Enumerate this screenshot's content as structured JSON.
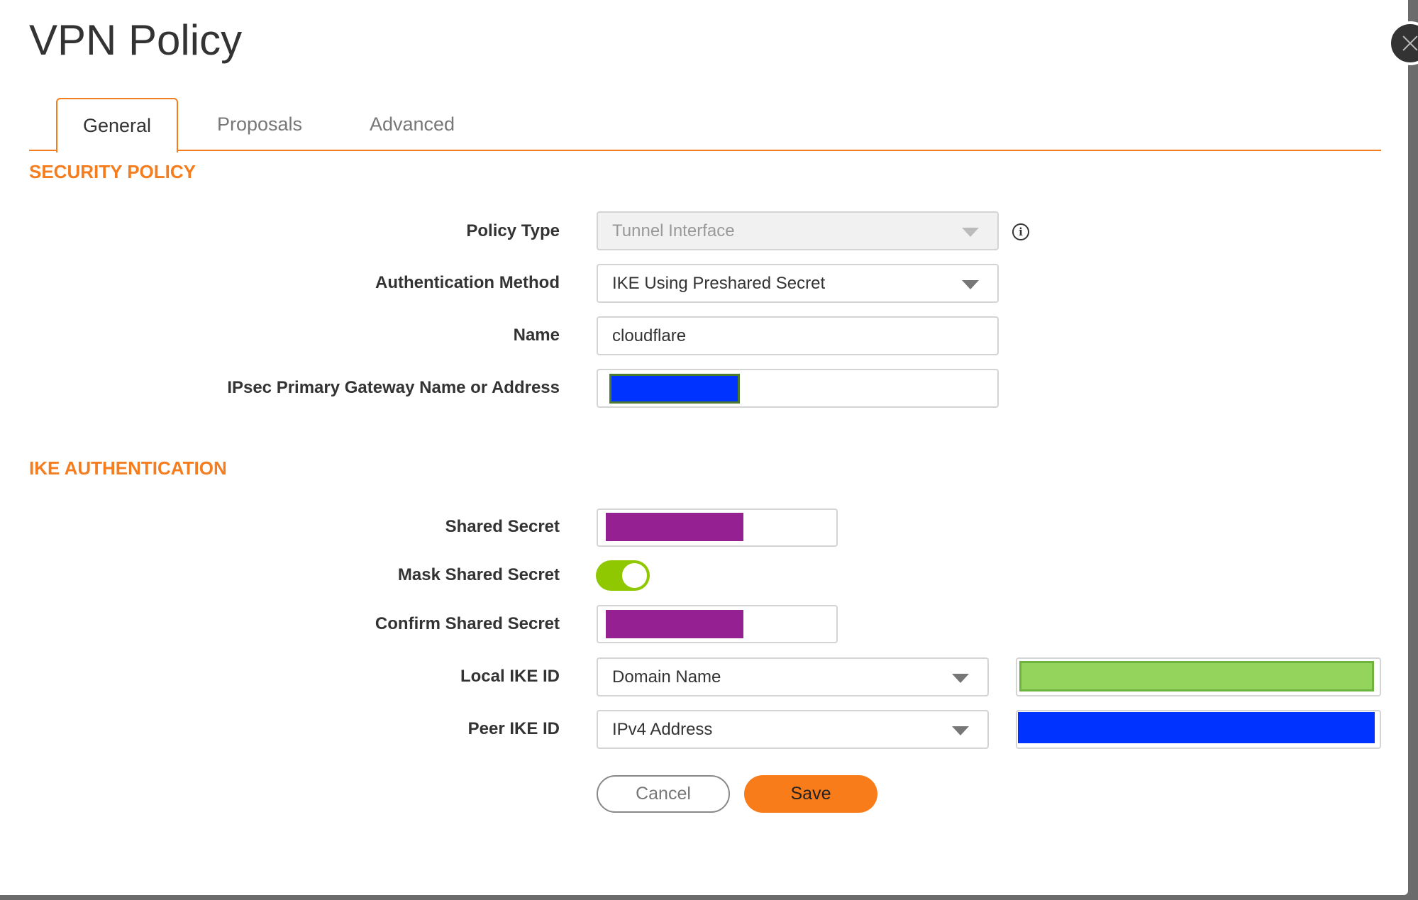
{
  "dialog": {
    "title": "VPN Policy"
  },
  "tabs": [
    {
      "label": "General",
      "active": true
    },
    {
      "label": "Proposals"
    },
    {
      "label": "Advanced"
    }
  ],
  "security_policy": {
    "heading": "SECURITY POLICY",
    "policy_type": {
      "label": "Policy Type",
      "value": "Tunnel Interface",
      "disabled": true
    },
    "auth_method": {
      "label": "Authentication Method",
      "value": "IKE Using Preshared Secret"
    },
    "name": {
      "label": "Name",
      "value": "cloudflare"
    },
    "gateway": {
      "label": "IPsec Primary Gateway Name or Address",
      "redaction_color": "#0033ff"
    }
  },
  "ike_auth": {
    "heading": "IKE AUTHENTICATION",
    "shared_secret": {
      "label": "Shared Secret",
      "redaction_color": "#952091"
    },
    "mask_shared_secret": {
      "label": "Mask Shared Secret",
      "enabled": true
    },
    "confirm_shared_secret": {
      "label": "Confirm Shared Secret",
      "redaction_color": "#952091"
    },
    "local_ike_id": {
      "label": "Local IKE ID",
      "type": "Domain Name",
      "redaction_color": "#94d35c"
    },
    "peer_ike_id": {
      "label": "Peer IKE ID",
      "type": "IPv4 Address",
      "redaction_color": "#0033ff"
    }
  },
  "buttons": {
    "cancel": "Cancel",
    "save": "Save"
  },
  "colors": {
    "accent": "#f47d20",
    "toggle_on": "#8fc800"
  }
}
